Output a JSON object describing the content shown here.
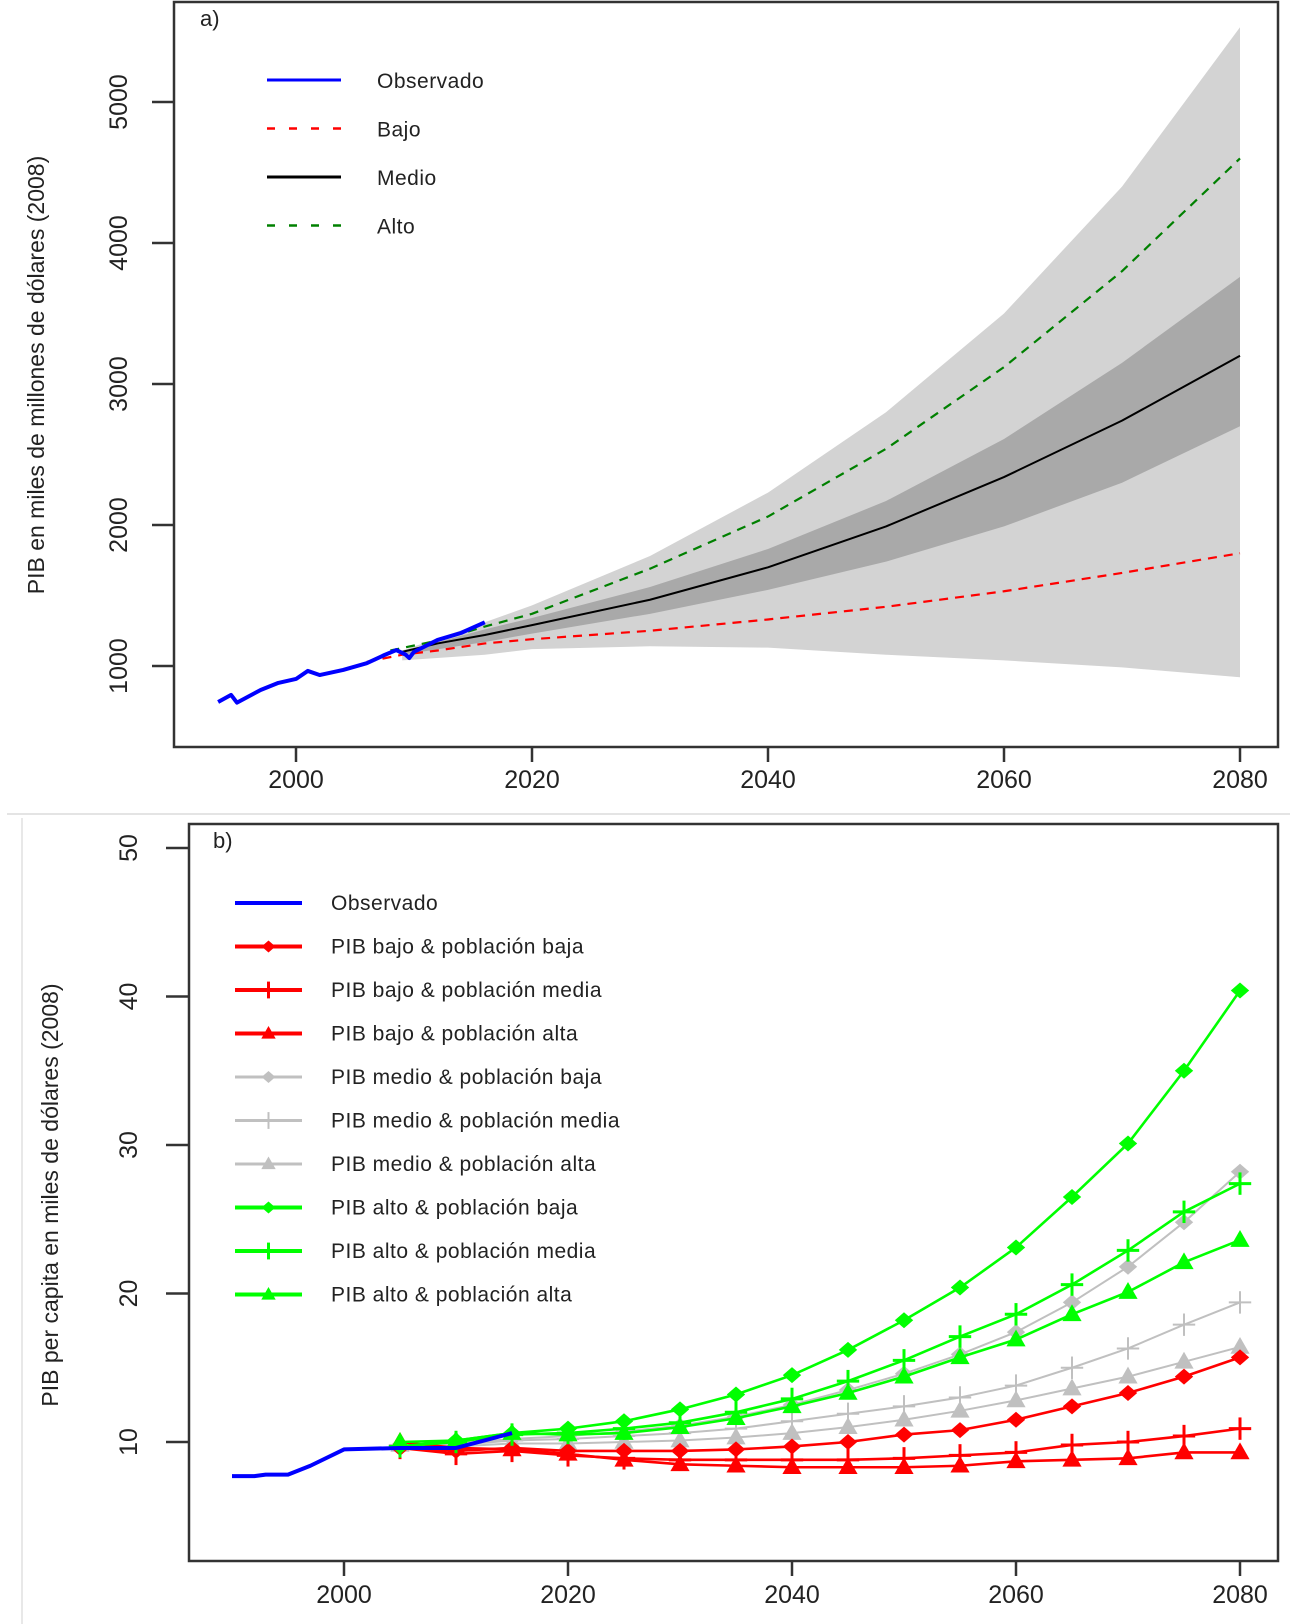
{
  "chart_data": [
    {
      "type": "line",
      "panel_label": "a)",
      "title": "",
      "xlabel": "",
      "ylabel": "PIB en miles de millones de dólares (2008)",
      "xlim": [
        1990,
        2083
      ],
      "ylim": [
        520,
        5620
      ],
      "xticks": [
        2000,
        2020,
        2040,
        2060,
        2080
      ],
      "yticks": [
        1000,
        2000,
        3000,
        4000,
        5000
      ],
      "grid": false,
      "legend_position": "top-left",
      "legend": [
        {
          "label": "Observado",
          "color": "#0000ff",
          "style": "solid"
        },
        {
          "label": "Bajo",
          "color": "#ff0000",
          "style": "dashed"
        },
        {
          "label": "Medio",
          "color": "#000000",
          "style": "solid"
        },
        {
          "label": "Alto",
          "color": "#008000",
          "style": "dashed"
        }
      ],
      "bands": [
        {
          "name": "outer-interval",
          "color": "#d3d3d3",
          "x": [
            2009,
            2016,
            2020,
            2030,
            2040,
            2050,
            2060,
            2070,
            2080
          ],
          "upper": [
            1110,
            1310,
            1430,
            1780,
            2230,
            2800,
            3500,
            4400,
            5530
          ],
          "lower": [
            1040,
            1080,
            1120,
            1140,
            1130,
            1080,
            1040,
            990,
            920
          ]
        },
        {
          "name": "inner-interval",
          "color": "#a9a9a9",
          "x": [
            2009,
            2016,
            2020,
            2030,
            2040,
            2050,
            2060,
            2070,
            2080
          ],
          "upper": [
            1100,
            1260,
            1340,
            1560,
            1830,
            2170,
            2610,
            3150,
            3760
          ],
          "lower": [
            1080,
            1170,
            1230,
            1370,
            1540,
            1740,
            1990,
            2300,
            2700
          ]
        }
      ],
      "series": [
        {
          "name": "Observado",
          "color": "#0000ff",
          "x": [
            1993.4,
            1994.5,
            1995,
            1997,
            1998.5,
            2000,
            2001,
            2002,
            2004,
            2006,
            2007.5,
            2008.5,
            2009.3,
            2009.6,
            2010,
            2012,
            2014,
            2016
          ],
          "y": [
            745,
            795,
            740,
            830,
            880,
            908,
            965,
            936,
            972,
            1020,
            1078,
            1113,
            1080,
            1057,
            1100,
            1185,
            1235,
            1310
          ]
        },
        {
          "name": "Bajo",
          "color": "#ff0000",
          "x": [
            2006,
            2009,
            2012,
            2016,
            2020,
            2030,
            2040,
            2050,
            2060,
            2070,
            2080
          ],
          "y": [
            1030,
            1080,
            1110,
            1160,
            1190,
            1250,
            1330,
            1420,
            1530,
            1660,
            1800
          ]
        },
        {
          "name": "Medio",
          "color": "#000000",
          "x": [
            2009,
            2012,
            2016,
            2020,
            2030,
            2040,
            2050,
            2060,
            2070,
            2080
          ],
          "y": [
            1100,
            1160,
            1220,
            1290,
            1470,
            1700,
            1990,
            2340,
            2740,
            3200
          ]
        },
        {
          "name": "Alto",
          "color": "#008000",
          "x": [
            2008,
            2012,
            2016,
            2020,
            2030,
            2040,
            2050,
            2060,
            2070,
            2080
          ],
          "y": [
            1110,
            1180,
            1280,
            1370,
            1690,
            2060,
            2540,
            3120,
            3800,
            4600
          ]
        }
      ]
    },
    {
      "type": "line",
      "panel_label": "b)",
      "title": "",
      "xlabel": "",
      "ylabel": "PIB per capita en miles de dólares (2008)",
      "xlim": [
        1986,
        2083
      ],
      "ylim": [
        2.6,
        51.6
      ],
      "xticks": [
        2000,
        2020,
        2040,
        2060,
        2080
      ],
      "yticks": [
        10,
        20,
        30,
        40,
        50
      ],
      "grid": false,
      "legend_position": "top-left",
      "series": [
        {
          "name": "Observado",
          "color": "#0000ff",
          "marker": "none",
          "x": [
            1990,
            1992,
            1993,
            1995,
            1997,
            2000,
            2005,
            2010,
            2015
          ],
          "y": [
            7.7,
            7.7,
            7.8,
            7.8,
            8.4,
            9.5,
            9.6,
            9.6,
            10.6
          ]
        },
        {
          "name": "PIB bajo & población baja",
          "color": "#ff0000",
          "marker": "diamond",
          "x": [
            2005,
            2010,
            2015,
            2020,
            2025,
            2030,
            2035,
            2040,
            2045,
            2050,
            2055,
            2060,
            2065,
            2070,
            2075,
            2080
          ],
          "y": [
            9.6,
            9.4,
            9.6,
            9.4,
            9.4,
            9.4,
            9.5,
            9.7,
            10.0,
            10.5,
            10.8,
            11.5,
            12.4,
            13.3,
            14.4,
            15.7
          ]
        },
        {
          "name": "PIB bajo & población media",
          "color": "#ff0000",
          "marker": "plus",
          "x": [
            2005,
            2010,
            2015,
            2020,
            2025,
            2030,
            2035,
            2040,
            2045,
            2050,
            2055,
            2060,
            2065,
            2070,
            2075,
            2080
          ],
          "y": [
            9.6,
            9.2,
            9.4,
            9.1,
            8.9,
            8.8,
            8.8,
            8.8,
            8.8,
            8.9,
            9.1,
            9.3,
            9.8,
            10.0,
            10.4,
            10.9
          ]
        },
        {
          "name": "PIB bajo & población alta",
          "color": "#ff0000",
          "marker": "triangle",
          "x": [
            2005,
            2010,
            2015,
            2020,
            2025,
            2030,
            2035,
            2040,
            2045,
            2050,
            2055,
            2060,
            2065,
            2070,
            2075,
            2080
          ],
          "y": [
            10.0,
            9.6,
            9.5,
            9.2,
            8.8,
            8.5,
            8.4,
            8.3,
            8.3,
            8.3,
            8.4,
            8.7,
            8.8,
            8.9,
            9.3,
            9.3
          ]
        },
        {
          "name": "PIB medio & población baja",
          "color": "#c0c0c0",
          "marker": "diamond",
          "x": [
            2005,
            2010,
            2015,
            2020,
            2025,
            2030,
            2035,
            2040,
            2045,
            2050,
            2055,
            2060,
            2065,
            2070,
            2075,
            2080
          ],
          "y": [
            9.8,
            9.9,
            10.2,
            10.4,
            10.7,
            11.1,
            11.7,
            12.5,
            13.5,
            14.6,
            15.9,
            17.4,
            19.4,
            21.8,
            24.8,
            28.2
          ]
        },
        {
          "name": "PIB medio & población media",
          "color": "#c0c0c0",
          "marker": "plus",
          "x": [
            2005,
            2010,
            2015,
            2020,
            2025,
            2030,
            2035,
            2040,
            2045,
            2050,
            2055,
            2060,
            2065,
            2070,
            2075,
            2080
          ],
          "y": [
            9.8,
            9.8,
            10.1,
            10.2,
            10.4,
            10.6,
            10.9,
            11.4,
            11.9,
            12.4,
            13.0,
            13.8,
            15.0,
            16.3,
            17.9,
            19.4
          ]
        },
        {
          "name": "PIB medio & población alta",
          "color": "#c0c0c0",
          "marker": "triangle",
          "x": [
            2005,
            2010,
            2015,
            2020,
            2025,
            2030,
            2035,
            2040,
            2045,
            2050,
            2055,
            2060,
            2065,
            2070,
            2075,
            2080
          ],
          "y": [
            9.8,
            9.7,
            9.9,
            9.9,
            10.0,
            10.1,
            10.3,
            10.6,
            11.0,
            11.5,
            12.1,
            12.8,
            13.6,
            14.4,
            15.4,
            16.4
          ]
        },
        {
          "name": "PIB alto & población baja",
          "color": "#00ff00",
          "marker": "diamond",
          "x": [
            2005,
            2010,
            2015,
            2020,
            2025,
            2030,
            2035,
            2040,
            2045,
            2050,
            2055,
            2060,
            2065,
            2070,
            2075,
            2080
          ],
          "y": [
            9.7,
            10.1,
            10.6,
            10.9,
            11.4,
            12.2,
            13.2,
            14.5,
            16.2,
            18.2,
            20.4,
            23.1,
            26.5,
            30.1,
            35.0,
            40.4
          ]
        },
        {
          "name": "PIB alto & población media",
          "color": "#00ff00",
          "marker": "plus",
          "x": [
            2005,
            2010,
            2015,
            2020,
            2025,
            2030,
            2035,
            2040,
            2045,
            2050,
            2055,
            2060,
            2065,
            2070,
            2075,
            2080
          ],
          "y": [
            9.7,
            10.0,
            10.5,
            10.6,
            10.9,
            11.3,
            12.0,
            12.9,
            14.1,
            15.5,
            17.1,
            18.6,
            20.6,
            22.9,
            25.5,
            27.4
          ]
        },
        {
          "name": "PIB alto & población alta",
          "color": "#00ff00",
          "marker": "triangle",
          "x": [
            2005,
            2010,
            2015,
            2020,
            2025,
            2030,
            2035,
            2040,
            2045,
            2050,
            2055,
            2060,
            2065,
            2070,
            2075,
            2080
          ],
          "y": [
            10.0,
            10.1,
            10.6,
            10.5,
            10.6,
            11.0,
            11.6,
            12.4,
            13.3,
            14.4,
            15.7,
            16.9,
            18.6,
            20.1,
            22.1,
            23.6
          ]
        }
      ]
    }
  ]
}
